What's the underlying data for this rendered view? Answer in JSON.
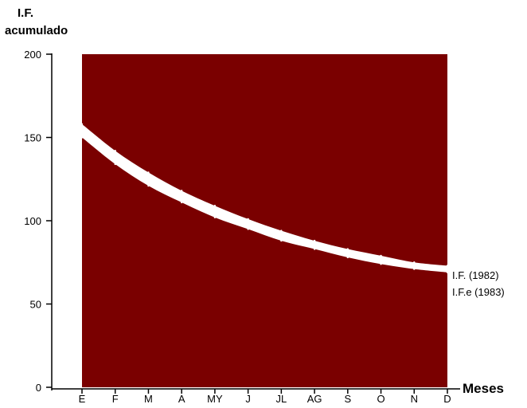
{
  "chart_data": {
    "type": "area",
    "ylabel": [
      "I.F.",
      "acumulado"
    ],
    "xlabel": "Meses",
    "categories": [
      "E",
      "F",
      "M",
      "A",
      "MY",
      "J",
      "JL",
      "AG",
      "S",
      "O",
      "N",
      "D"
    ],
    "ylim": [
      0,
      200
    ],
    "yticks": [
      0,
      50,
      100,
      150,
      200
    ],
    "background_region": {
      "y_from": 0,
      "y_to": 200,
      "color": "#7a0000"
    },
    "series": [
      {
        "name": "I.F. (1982)",
        "values": [
          158,
          142,
          129,
          118,
          109,
          101,
          94,
          88,
          83,
          79,
          75,
          73
        ]
      },
      {
        "name": "I.F.e (1983)",
        "values": [
          150,
          134,
          121,
          111,
          102,
          95,
          88,
          83,
          78,
          74,
          71,
          69
        ]
      }
    ],
    "band_color": "#ffffff",
    "legend_placement": "right",
    "grid": false
  }
}
